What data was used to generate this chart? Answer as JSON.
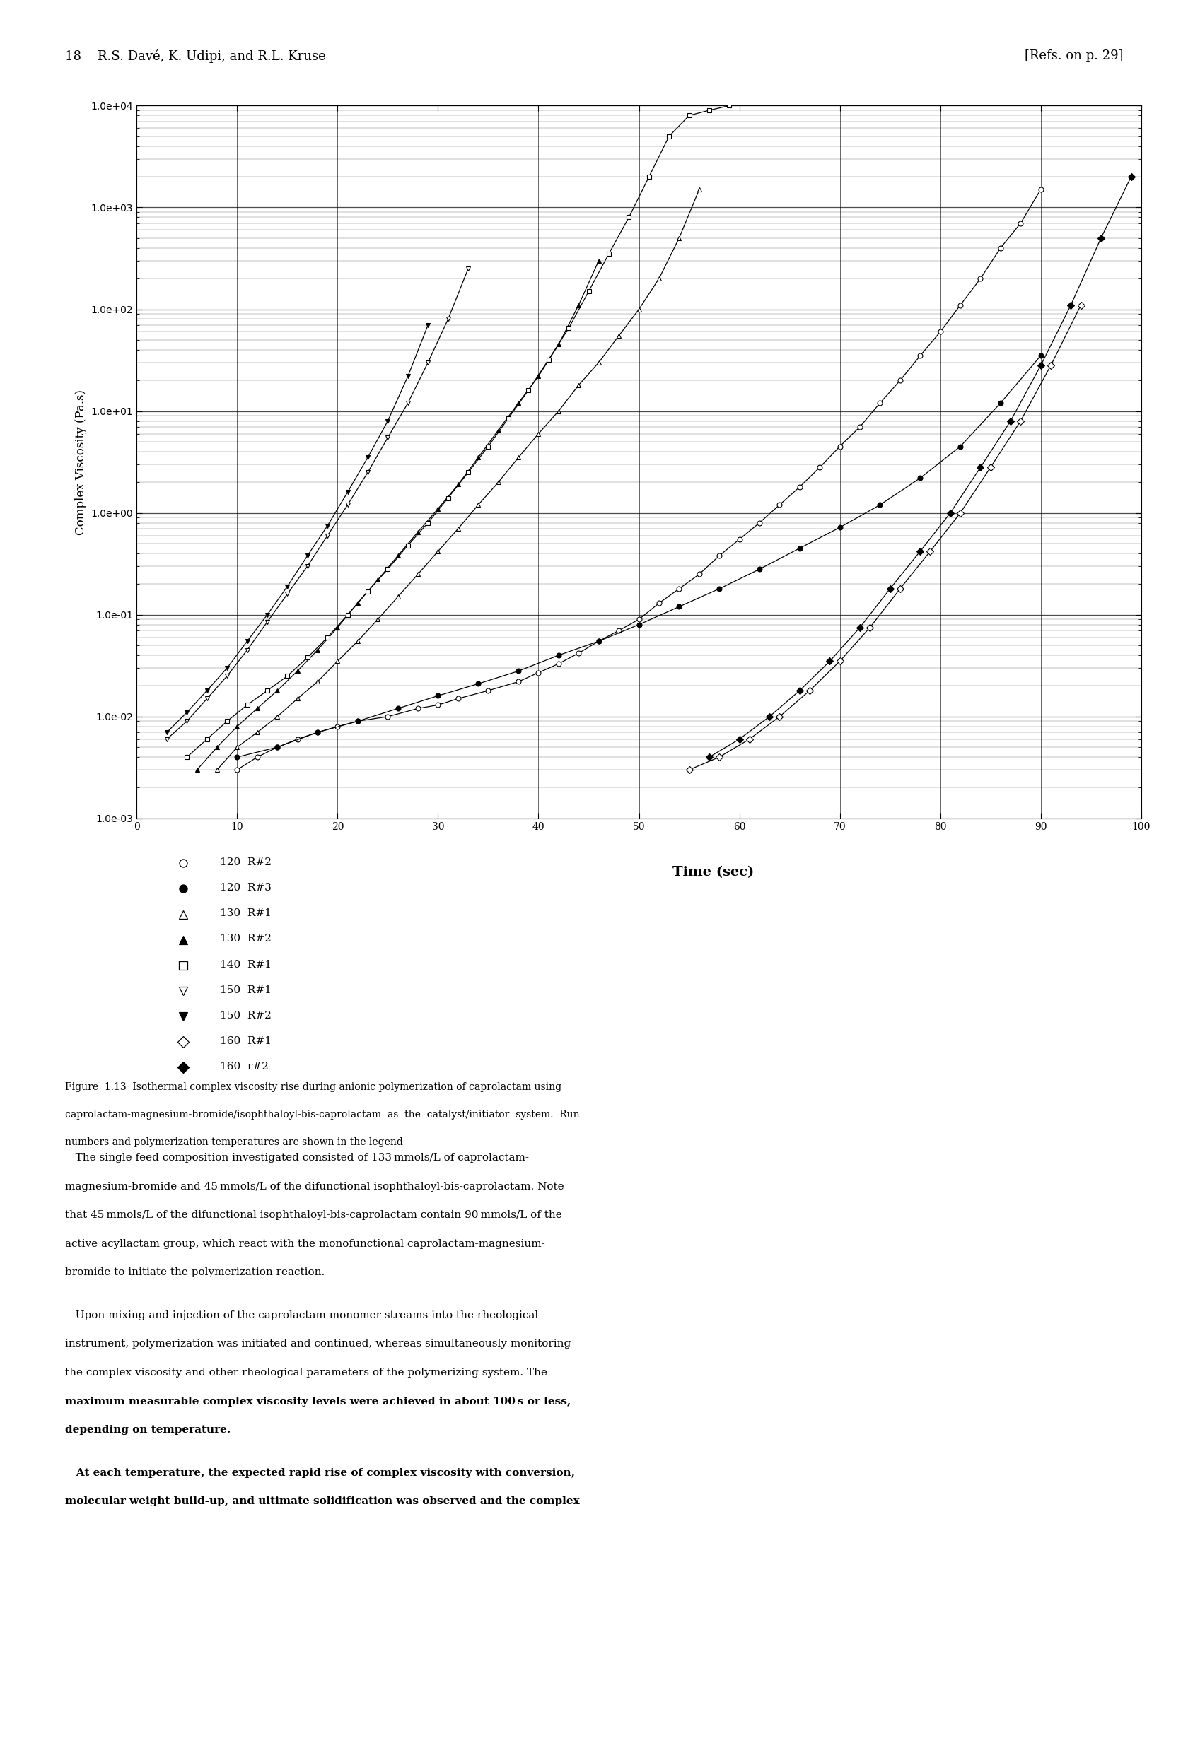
{
  "header_left": "18    R.S. Davé, K. Udipi, and R.L. Kruse",
  "header_right": "[Refs. on p. 29]",
  "xlabel": "Time (sec)",
  "ylabel": "Complex Viscosity (Pa.s)",
  "xlim": [
    0,
    100
  ],
  "xticks": [
    0,
    10,
    20,
    30,
    40,
    50,
    60,
    70,
    80,
    90,
    100
  ],
  "ytick_labels": [
    "1.0e-03",
    "1.0e-02",
    "1.0e-01",
    "1.0e+00",
    "1.0e+01",
    "1.0e+02",
    "1.0e+03",
    "1.0e+04"
  ],
  "legend_entries": [
    {
      "label": "120  R#2",
      "marker": "o",
      "filled": false
    },
    {
      "label": "120  R#3",
      "marker": "o",
      "filled": true
    },
    {
      "label": "130  R#1",
      "marker": "^",
      "filled": false
    },
    {
      "label": "130  R#2",
      "marker": "^",
      "filled": true
    },
    {
      "label": "140  R#1",
      "marker": "s",
      "filled": false
    },
    {
      "label": "150  R#1",
      "marker": "v",
      "filled": false
    },
    {
      "label": "150  R#2",
      "marker": "v",
      "filled": true
    },
    {
      "label": "160  R#1",
      "marker": "D",
      "filled": false
    },
    {
      "label": "160  r#2",
      "marker": "D",
      "filled": true
    }
  ],
  "series": [
    {
      "name": "120 R#2",
      "marker": "o",
      "filled": false,
      "x": [
        10,
        12,
        14,
        16,
        18,
        20,
        22,
        25,
        28,
        30,
        32,
        35,
        38,
        40,
        42,
        44,
        46,
        48,
        50,
        52,
        54,
        56,
        58,
        60,
        62,
        64,
        66,
        68,
        70,
        72,
        74,
        76,
        78,
        80,
        82,
        84,
        86,
        88,
        90
      ],
      "y": [
        0.003,
        0.004,
        0.005,
        0.006,
        0.007,
        0.008,
        0.009,
        0.01,
        0.012,
        0.013,
        0.015,
        0.018,
        0.022,
        0.027,
        0.033,
        0.042,
        0.055,
        0.07,
        0.09,
        0.13,
        0.18,
        0.25,
        0.38,
        0.55,
        0.8,
        1.2,
        1.8,
        2.8,
        4.5,
        7.0,
        12,
        20,
        35,
        60,
        110,
        200,
        400,
        700,
        1500
      ]
    },
    {
      "name": "120 R#3",
      "marker": "o",
      "filled": true,
      "x": [
        10,
        14,
        18,
        22,
        26,
        30,
        34,
        38,
        42,
        46,
        50,
        54,
        58,
        62,
        66,
        70,
        74,
        78,
        82,
        86,
        90
      ],
      "y": [
        0.004,
        0.005,
        0.007,
        0.009,
        0.012,
        0.016,
        0.021,
        0.028,
        0.04,
        0.055,
        0.08,
        0.12,
        0.18,
        0.28,
        0.45,
        0.72,
        1.2,
        2.2,
        4.5,
        12,
        35
      ]
    },
    {
      "name": "130 R#1",
      "marker": "^",
      "filled": false,
      "x": [
        8,
        10,
        12,
        14,
        16,
        18,
        20,
        22,
        24,
        26,
        28,
        30,
        32,
        34,
        36,
        38,
        40,
        42,
        44,
        46,
        48,
        50,
        52,
        54,
        56
      ],
      "y": [
        0.003,
        0.005,
        0.007,
        0.01,
        0.015,
        0.022,
        0.035,
        0.055,
        0.09,
        0.15,
        0.25,
        0.42,
        0.7,
        1.2,
        2.0,
        3.5,
        6.0,
        10,
        18,
        30,
        55,
        100,
        200,
        500,
        1500
      ]
    },
    {
      "name": "130 R#2",
      "marker": "^",
      "filled": true,
      "x": [
        6,
        8,
        10,
        12,
        14,
        16,
        18,
        20,
        22,
        24,
        26,
        28,
        30,
        32,
        34,
        36,
        38,
        40,
        42,
        44,
        46
      ],
      "y": [
        0.003,
        0.005,
        0.008,
        0.012,
        0.018,
        0.028,
        0.045,
        0.075,
        0.13,
        0.22,
        0.38,
        0.65,
        1.1,
        1.9,
        3.5,
        6.5,
        12,
        22,
        45,
        110,
        300
      ]
    },
    {
      "name": "140 R#1",
      "marker": "s",
      "filled": false,
      "x": [
        5,
        7,
        9,
        11,
        13,
        15,
        17,
        19,
        21,
        23,
        25,
        27,
        29,
        31,
        33,
        35,
        37,
        39,
        41,
        43,
        45,
        47,
        49,
        51,
        53,
        55,
        57,
        59
      ],
      "y": [
        0.004,
        0.006,
        0.009,
        0.013,
        0.018,
        0.025,
        0.038,
        0.06,
        0.1,
        0.17,
        0.28,
        0.48,
        0.8,
        1.4,
        2.5,
        4.5,
        8.5,
        16,
        32,
        65,
        150,
        350,
        800,
        2000,
        5000,
        8000,
        9000,
        10000
      ]
    },
    {
      "name": "150 R#1",
      "marker": "v",
      "filled": false,
      "x": [
        3,
        5,
        7,
        9,
        11,
        13,
        15,
        17,
        19,
        21,
        23,
        25,
        27,
        29,
        31,
        33
      ],
      "y": [
        0.006,
        0.009,
        0.015,
        0.025,
        0.045,
        0.085,
        0.16,
        0.3,
        0.6,
        1.2,
        2.5,
        5.5,
        12,
        30,
        80,
        250
      ]
    },
    {
      "name": "150 R#2",
      "marker": "v",
      "filled": true,
      "x": [
        3,
        5,
        7,
        9,
        11,
        13,
        15,
        17,
        19,
        21,
        23,
        25,
        27,
        29
      ],
      "y": [
        0.007,
        0.011,
        0.018,
        0.03,
        0.055,
        0.1,
        0.19,
        0.38,
        0.75,
        1.6,
        3.5,
        8.0,
        22,
        70
      ]
    },
    {
      "name": "160 R#1",
      "marker": "D",
      "filled": false,
      "x": [
        55,
        58,
        61,
        64,
        67,
        70,
        73,
        76,
        79,
        82,
        85,
        88,
        91,
        94
      ],
      "y": [
        0.003,
        0.004,
        0.006,
        0.01,
        0.018,
        0.035,
        0.075,
        0.18,
        0.42,
        1.0,
        2.8,
        8.0,
        28,
        110
      ]
    },
    {
      "name": "160 r#2",
      "marker": "D",
      "filled": true,
      "x": [
        57,
        60,
        63,
        66,
        69,
        72,
        75,
        78,
        81,
        84,
        87,
        90,
        93,
        96,
        99
      ],
      "y": [
        0.004,
        0.006,
        0.01,
        0.018,
        0.035,
        0.075,
        0.18,
        0.42,
        1.0,
        2.8,
        8.0,
        28,
        110,
        500,
        2000
      ]
    }
  ],
  "figure_caption_1": "Figure  1.13  Isothermal complex viscosity rise during anionic polymerization of caprolactam using",
  "figure_caption_2": "caprolactam-magnesium-bromide/isophthaloyl-bis-caprolactam  as  the  catalyst/initiator  system.  Run",
  "figure_caption_3": "numbers and polymerization temperatures are shown in the legend",
  "body1": "   The single feed composition investigated consisted of 133 mmols/L of caprolactam-magnesium-bromide and 45 mmols/L of the difunctional isophthaloyl-bis-caprolactam. Note that 45 mmols/L of the difunctional isophthaloyl-bis-caprolactam contain 90 mmols/L of the active acyllactam group, which react with the monofunctional caprolactam-magnesium-bromide to initiate the polymerization reaction.",
  "body2a": "   Upon mixing and injection of the caprolactam monomer streams into the rheological instrument, polymerization was initiated and continued, whereas simultaneously monitoring the complex viscosity and other rheological parameters of the polymerizing system. The ",
  "body2b": "maximum measurable complex viscosity levels were achieved in about 100 s or less, depending on temperature.",
  "body3": "   At each temperature, the expected rapid rise of complex viscosity with conversion, molecular weight build-up, and ultimate solidification was observed and the complex"
}
